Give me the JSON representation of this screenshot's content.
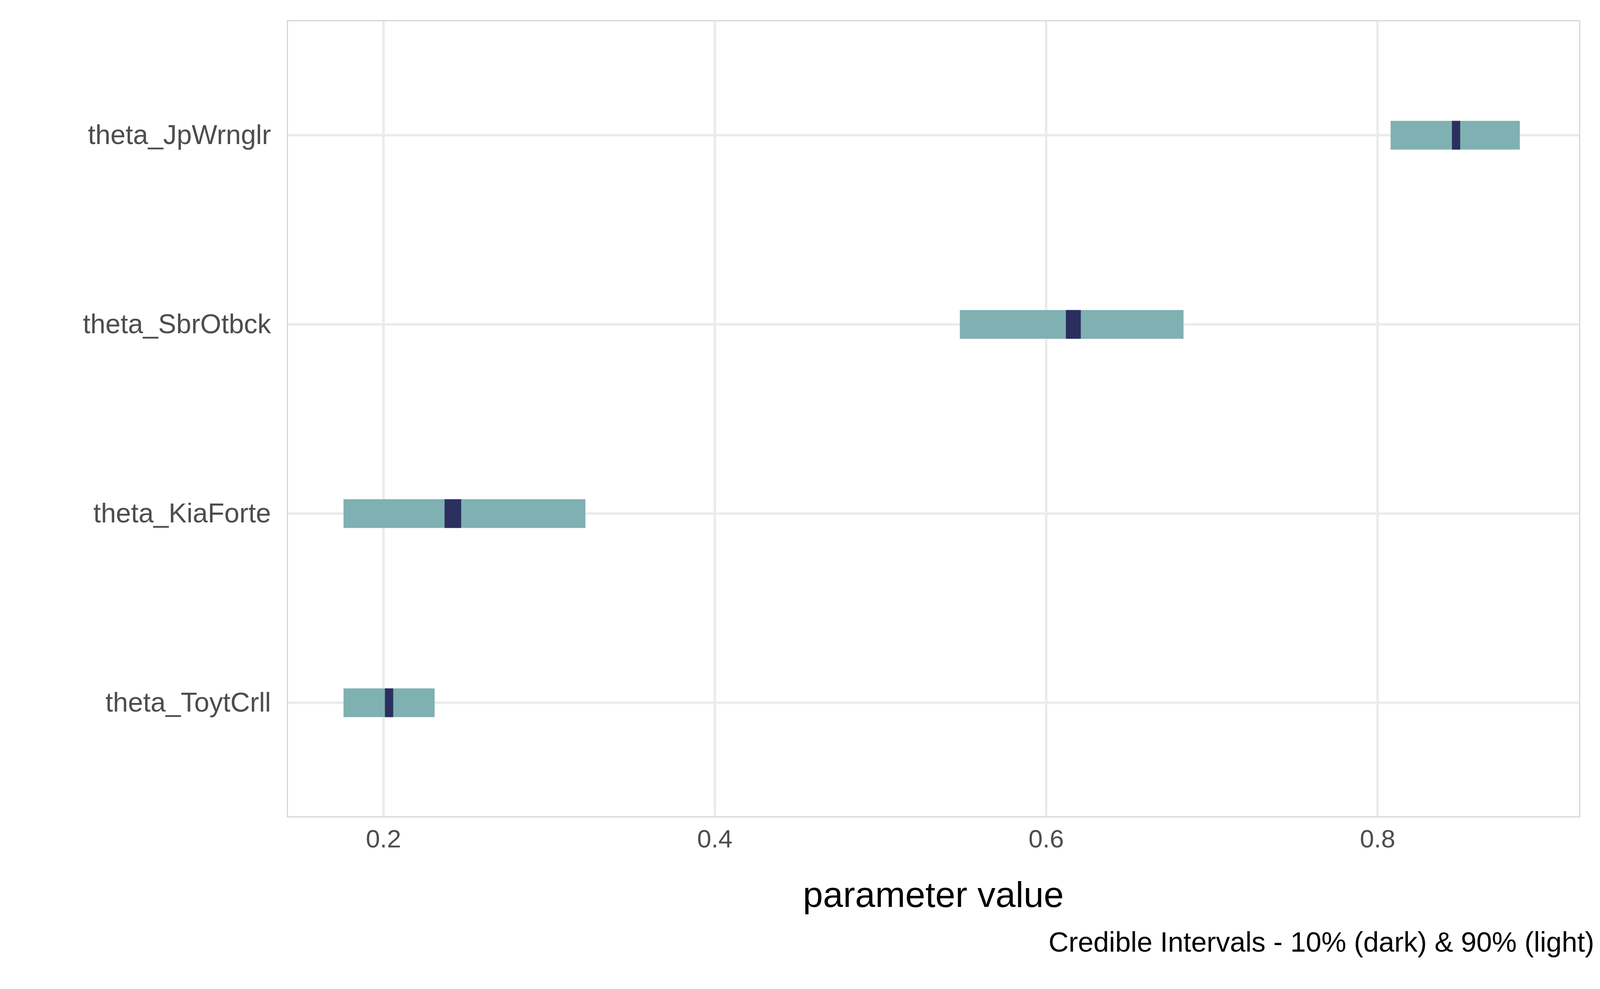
{
  "chart_data": {
    "type": "interval",
    "orientation": "horizontal",
    "x_label": "parameter value",
    "caption": "Credible Intervals - 10% (dark) & 90% (light)",
    "categories": [
      "theta_JpWrnglr",
      "theta_SbrOtbck",
      "theta_KiaForte",
      "theta_ToytCrll"
    ],
    "series": [
      {
        "color": "#7fb0b2",
        "values": [
          [
            0.808,
            0.886
          ],
          [
            0.548,
            0.683
          ],
          [
            0.176,
            0.322
          ],
          [
            0.176,
            0.231
          ]
        ]
      },
      {
        "color": "#2a2f60",
        "values": [
          [
            0.845,
            0.85
          ],
          [
            0.612,
            0.621
          ],
          [
            0.237,
            0.247
          ],
          [
            0.201,
            0.206
          ]
        ]
      }
    ],
    "xlim": [
      0.142,
      0.922
    ],
    "xticks": [
      0.2,
      0.4,
      0.6,
      0.8
    ],
    "grid": true
  }
}
